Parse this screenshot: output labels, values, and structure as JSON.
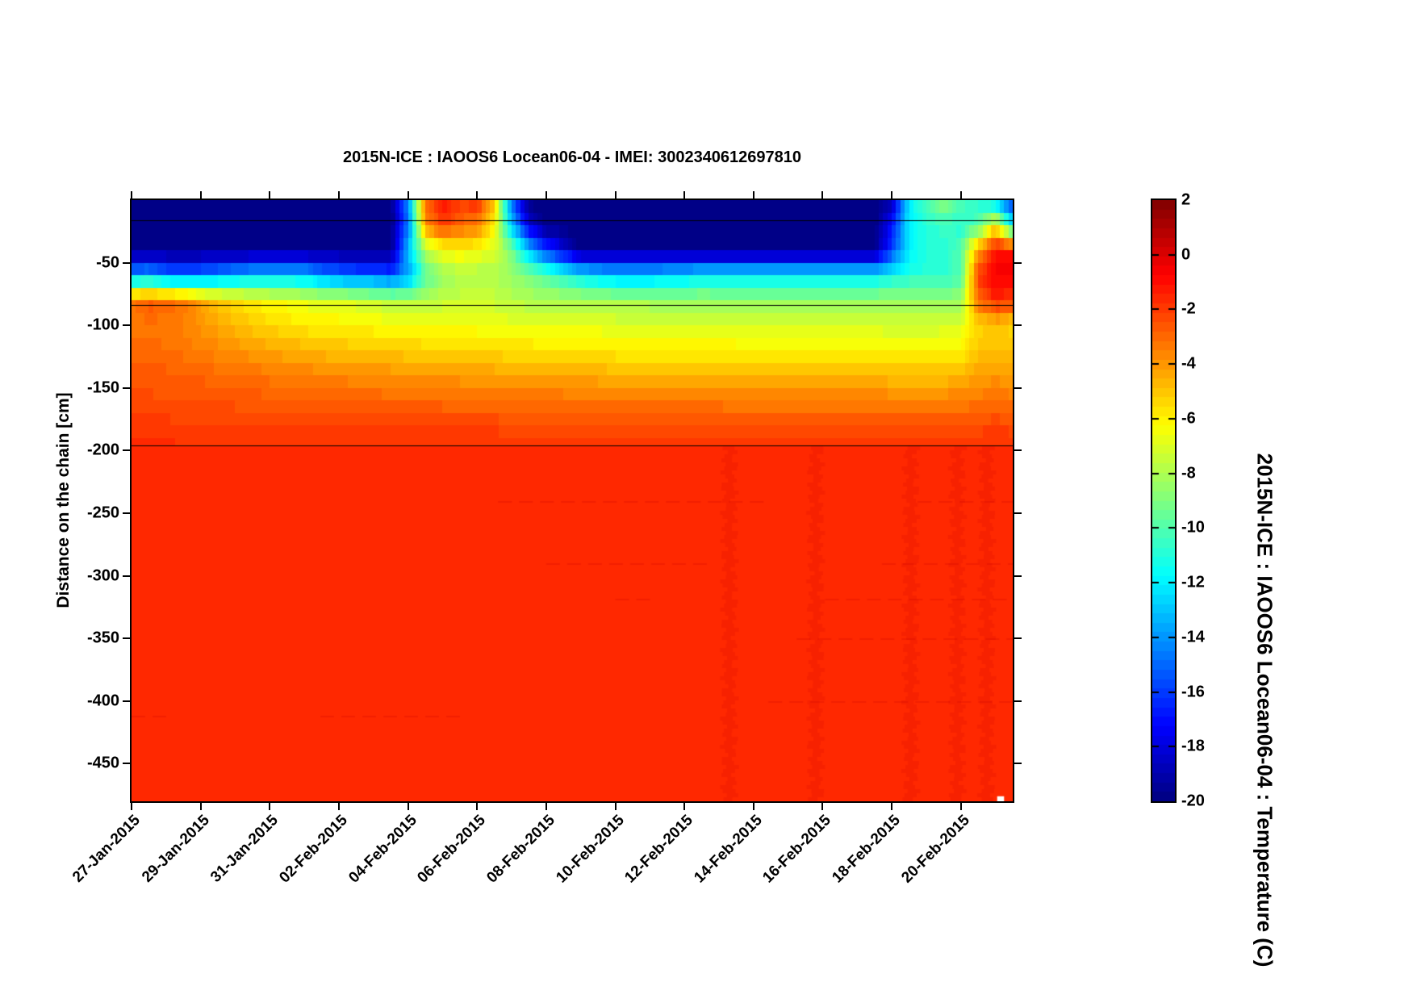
{
  "title": "2015N-ICE : IAOOS6  Locean06-04 - IMEI: 3002340612697810",
  "axes": {
    "ylabel": "Distance on the chain [cm]",
    "y_ticks": [
      -50,
      -100,
      -150,
      -200,
      -250,
      -300,
      -350,
      -400,
      -450
    ],
    "x_tick_labels": [
      "27-Jan-2015",
      "29-Jan-2015",
      "31-Jan-2015",
      "02-Feb-2015",
      "04-Feb-2015",
      "06-Feb-2015",
      "08-Feb-2015",
      "10-Feb-2015",
      "12-Feb-2015",
      "14-Feb-2015",
      "16-Feb-2015",
      "18-Feb-2015",
      "20-Feb-2015"
    ],
    "x_tick_days": [
      0,
      2,
      4,
      6,
      8,
      10,
      12,
      14,
      16,
      18,
      20,
      22,
      24
    ]
  },
  "colorbar": {
    "label": "2015N-ICE : IAOOS6  Locean06-04 : Temperature (C)",
    "ticks": [
      2,
      0,
      -2,
      -4,
      -6,
      -8,
      -10,
      -12,
      -14,
      -16,
      -18,
      -20
    ]
  },
  "chart_data": {
    "type": "heatmap",
    "title": "2015N-ICE : IAOOS6  Locean06-04 - IMEI: 3002340612697810",
    "xlabel": "",
    "ylabel": "Distance on the chain [cm]",
    "colorbar_label": "2015N-ICE : IAOOS6  Locean06-04 : Temperature (C)",
    "colormap": "jet",
    "colormap_levels": 64,
    "clim": [
      -20,
      2
    ],
    "x_range_days": [
      0,
      25.5
    ],
    "x_start_date": "27-Jan-2015",
    "y_range_cm": [
      0,
      -480
    ],
    "overlay_lines_cm": [
      -16,
      -84,
      -196
    ],
    "grid": {
      "times_days_step": 0.5,
      "times_days": [
        0,
        0.5,
        1,
        1.5,
        2,
        2.5,
        3,
        3.5,
        4,
        4.5,
        5,
        5.5,
        6,
        6.5,
        7,
        7.5,
        8,
        8.5,
        9,
        9.5,
        10,
        10.5,
        11,
        11.5,
        12,
        12.5,
        13,
        13.5,
        14,
        14.5,
        15,
        15.5,
        16,
        16.5,
        17,
        17.5,
        18,
        18.5,
        19,
        19.5,
        20,
        20.5,
        21,
        21.5,
        22,
        22.5,
        23,
        23.5,
        24,
        24.5,
        25,
        25.5
      ],
      "depths_cm": [
        0,
        -20,
        -40,
        -60,
        -80,
        -100,
        -120,
        -140,
        -160,
        -180,
        -200
      ],
      "temperature_c": [
        [
          -20,
          -20,
          -20,
          -20,
          -20,
          -20,
          -20,
          -20,
          -20,
          -20,
          -20,
          -20,
          -20,
          -20,
          -20,
          -20,
          -14,
          -3,
          -1,
          -2,
          -1.5,
          -5,
          -15,
          -20,
          -20,
          -20,
          -20,
          -20,
          -20,
          -20,
          -20,
          -20,
          -20,
          -20,
          -20,
          -20,
          -20,
          -20,
          -20,
          -20,
          -20,
          -20,
          -20,
          -20,
          -19,
          -12,
          -10,
          -8.5,
          -10,
          -11,
          -13,
          -17
        ],
        [
          -20,
          -20,
          -20,
          -20,
          -20,
          -20,
          -20,
          -20,
          -20,
          -20,
          -20,
          -20,
          -20,
          -20,
          -20,
          -20,
          -15,
          -4,
          -2,
          -3,
          -3.5,
          -6,
          -13,
          -18,
          -20,
          -20,
          -20,
          -20,
          -20,
          -20,
          -20,
          -20,
          -20,
          -20,
          -20,
          -20,
          -20,
          -20,
          -20,
          -20,
          -20,
          -20,
          -20,
          -20,
          -17,
          -12,
          -11,
          -10.5,
          -11,
          -10,
          -6,
          -12
        ],
        [
          -20,
          -20,
          -20,
          -20,
          -20,
          -20,
          -20,
          -20,
          -20,
          -20,
          -20,
          -20,
          -20,
          -20,
          -20,
          -20,
          -13,
          -8,
          -6.5,
          -6,
          -6.5,
          -7,
          -9,
          -13,
          -16,
          -18,
          -20,
          -20,
          -20,
          -20,
          -20,
          -20,
          -20,
          -20,
          -20,
          -20,
          -20,
          -20,
          -20,
          -20,
          -20,
          -20,
          -20,
          -20,
          -16,
          -12,
          -11,
          -11,
          -10,
          -4,
          -1,
          -1
        ],
        [
          -14,
          -13.5,
          -14.5,
          -15,
          -14.5,
          -14,
          -13.5,
          -13,
          -13,
          -13,
          -13,
          -14,
          -14.5,
          -15,
          -15,
          -15.5,
          -14,
          -10,
          -8.5,
          -8,
          -8,
          -8,
          -8.5,
          -9,
          -10,
          -11,
          -12,
          -12.5,
          -13,
          -13,
          -13,
          -12.5,
          -12.5,
          -12,
          -12,
          -12,
          -12,
          -12,
          -12,
          -12,
          -12,
          -12,
          -12,
          -12,
          -11.5,
          -11,
          -11,
          -11,
          -10,
          -2,
          -0.5,
          -0.5
        ],
        [
          -3.2,
          -2.6,
          -2.8,
          -3.2,
          -4.2,
          -5,
          -5.5,
          -6,
          -6.3,
          -6.5,
          -6.8,
          -7,
          -7,
          -7.2,
          -7.5,
          -7.8,
          -8,
          -8,
          -7.5,
          -7.5,
          -7.5,
          -7.5,
          -7.8,
          -8,
          -8,
          -8,
          -8,
          -8,
          -8.2,
          -8.2,
          -8.3,
          -8.3,
          -8.4,
          -8.4,
          -8.5,
          -8.5,
          -8.5,
          -8.5,
          -8.5,
          -8.5,
          -8.5,
          -8.5,
          -8.5,
          -8.5,
          -8.5,
          -8.5,
          -8.5,
          -8.5,
          -8.5,
          -3,
          -1.5,
          -2
        ],
        [
          -3.6,
          -3.2,
          -3.4,
          -3.6,
          -4,
          -4.4,
          -4.8,
          -5.1,
          -5.4,
          -5.6,
          -5.8,
          -6,
          -6,
          -6.1,
          -6.2,
          -6.3,
          -6.4,
          -6.5,
          -6.5,
          -6.5,
          -6.5,
          -6.6,
          -6.7,
          -6.7,
          -6.8,
          -6.8,
          -6.8,
          -6.8,
          -7,
          -7,
          -7,
          -7,
          -7,
          -7,
          -7,
          -7,
          -7.1,
          -7.1,
          -7.2,
          -7.2,
          -7.2,
          -7.2,
          -7.2,
          -7.2,
          -7.3,
          -7.3,
          -7.3,
          -7.2,
          -7,
          -5.5,
          -5,
          -5.5
        ],
        [
          -3,
          -3,
          -3.1,
          -3.3,
          -3.5,
          -3.7,
          -3.9,
          -4.1,
          -4.3,
          -4.5,
          -4.6,
          -4.8,
          -4.9,
          -5,
          -5,
          -5.1,
          -5.2,
          -5.3,
          -5.4,
          -5.4,
          -5.5,
          -5.5,
          -5.6,
          -5.6,
          -5.7,
          -5.7,
          -5.8,
          -5.8,
          -5.9,
          -5.9,
          -6,
          -6,
          -6,
          -6,
          -6,
          -6,
          -6,
          -6,
          -6,
          -6,
          -6,
          -6,
          -6,
          -6,
          -6.1,
          -6.1,
          -6.1,
          -6.1,
          -6,
          -5,
          -4.8,
          -5
        ],
        [
          -2.6,
          -2.6,
          -2.7,
          -2.8,
          -2.9,
          -3,
          -3.1,
          -3.2,
          -3.3,
          -3.4,
          -3.5,
          -3.6,
          -3.7,
          -3.75,
          -3.8,
          -3.9,
          -4,
          -4,
          -4.1,
          -4.1,
          -4.2,
          -4.2,
          -4.3,
          -4.3,
          -4.4,
          -4.4,
          -4.5,
          -4.5,
          -4.6,
          -4.6,
          -4.7,
          -4.7,
          -4.8,
          -4.8,
          -4.8,
          -4.8,
          -4.8,
          -4.8,
          -4.8,
          -4.8,
          -4.8,
          -4.8,
          -4.8,
          -4.8,
          -4.9,
          -4.9,
          -4.9,
          -4.9,
          -4.8,
          -4.2,
          -4,
          -4.2
        ],
        [
          -2.4,
          -2.4,
          -2.45,
          -2.5,
          -2.5,
          -2.55,
          -2.6,
          -2.65,
          -2.7,
          -2.7,
          -2.75,
          -2.8,
          -2.8,
          -2.85,
          -2.9,
          -2.95,
          -3,
          -3,
          -3,
          -3.05,
          -3.1,
          -3.1,
          -3.15,
          -3.15,
          -3.2,
          -3.2,
          -3.25,
          -3.25,
          -3.3,
          -3.3,
          -3.35,
          -3.35,
          -3.4,
          -3.4,
          -3.4,
          -3.45,
          -3.45,
          -3.5,
          -3.5,
          -3.5,
          -3.5,
          -3.5,
          -3.5,
          -3.5,
          -3.5,
          -3.5,
          -3.5,
          -3.5,
          -3.5,
          -3.3,
          -3.2,
          -3.3
        ],
        [
          -2,
          -2,
          -2,
          -2.05,
          -2.05,
          -2.05,
          -2.1,
          -2.1,
          -2.1,
          -2.1,
          -2.15,
          -2.15,
          -2.15,
          -2.2,
          -2.2,
          -2.2,
          -2.2,
          -2.2,
          -2.25,
          -2.25,
          -2.25,
          -2.25,
          -2.3,
          -2.3,
          -2.3,
          -2.3,
          -2.3,
          -2.3,
          -2.35,
          -2.35,
          -2.35,
          -2.35,
          -2.35,
          -2.35,
          -2.4,
          -2.4,
          -2.4,
          -2.4,
          -2.4,
          -2.4,
          -2.4,
          -2.4,
          -2.4,
          -2.4,
          -2.4,
          -2.4,
          -2.4,
          -2.4,
          -2.4,
          -2.3,
          -2.2,
          -2.3
        ],
        [
          -1.7,
          -1.7,
          -1.7,
          -1.7,
          -1.7,
          -1.7,
          -1.7,
          -1.7,
          -1.7,
          -1.7,
          -1.7,
          -1.7,
          -1.7,
          -1.7,
          -1.7,
          -1.7,
          -1.7,
          -1.7,
          -1.7,
          -1.7,
          -1.7,
          -1.7,
          -1.7,
          -1.7,
          -1.7,
          -1.7,
          -1.7,
          -1.7,
          -1.7,
          -1.7,
          -1.7,
          -1.7,
          -1.7,
          -1.7,
          -1.7,
          -1.7,
          -1.7,
          -1.7,
          -1.7,
          -1.7,
          -1.7,
          -1.7,
          -1.7,
          -1.7,
          -1.7,
          -1.7,
          -1.7,
          -1.7,
          -1.7,
          -1.7,
          -1.7,
          -1.7
        ]
      ]
    },
    "water": {
      "top_cm": -196,
      "temperature_c": -1.65
    },
    "water_streaks": {
      "vertical_days": [
        17.3,
        19.8,
        22.55,
        23.9,
        24.75
      ],
      "vertical_width_days": 0.35,
      "horizontal": [
        {
          "cm": -240,
          "t0": 10.0,
          "t1": 25.5
        },
        {
          "cm": -290,
          "t0": 12.0,
          "t1": 25.5
        },
        {
          "cm": -318,
          "t0": 14.0,
          "t1": 25.5
        },
        {
          "cm": -350,
          "t0": 15.0,
          "t1": 25.5
        },
        {
          "cm": -400,
          "t0": 16.0,
          "t1": 25.5
        },
        {
          "cm": -412,
          "t0": 0.0,
          "t1": 9.3
        }
      ]
    },
    "missing_data_notch": {
      "t0": 25.05,
      "t1": 25.25,
      "z0_cm": -476,
      "z1_cm": -480
    }
  },
  "style_colors": {
    "background": "#ffffff",
    "axis": "#000000",
    "jet_min_navy": "#000087",
    "jet_water_red": "#ff2a00",
    "jet_max_dark_red": "#870000"
  }
}
